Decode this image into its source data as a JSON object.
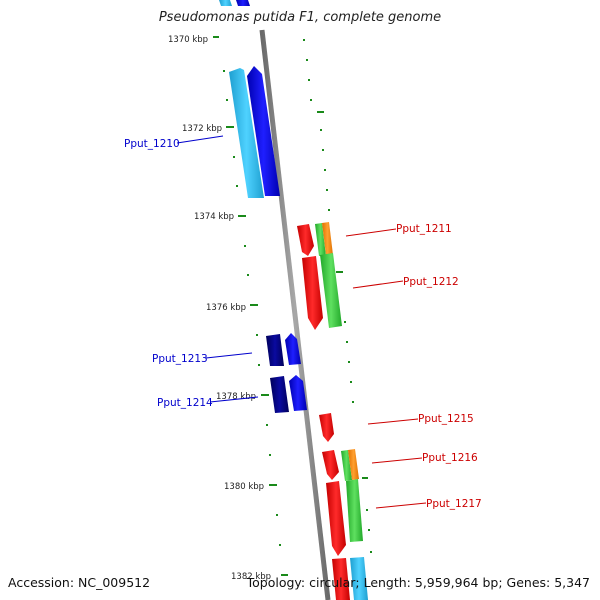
{
  "title": "Pseudomonas putida F1, complete genome",
  "footer": {
    "accession": "Accession: NC_009512",
    "summary": "Topology: circular; Length: 5,959,964 bp; Genes: 5,347"
  },
  "colors": {
    "backbone": "#808080",
    "tick": "#1a8a1a",
    "forward_label": "#0000cc",
    "reverse_label": "#cc0000"
  },
  "kbp_labels": [
    "1370 kbp",
    "1372 kbp",
    "1374 kbp",
    "1376 kbp",
    "1378 kbp",
    "1380 kbp",
    "1382 kbp"
  ],
  "genes": [
    {
      "label": "Pput_1210",
      "strand": "forward",
      "track_color": "#2cb5e8",
      "cds_color": "#0000e0"
    },
    {
      "label": "Pput_1211",
      "strand": "reverse",
      "track_color": "#e41a1c",
      "cds_color": "#2ecc40",
      "accent": "#ff8c00"
    },
    {
      "label": "Pput_1212",
      "strand": "reverse",
      "track_color": "#e41a1c",
      "cds_color": "#2ecc40"
    },
    {
      "label": "Pput_1213",
      "strand": "forward",
      "track_color": "#000080",
      "cds_color": "#0000e0"
    },
    {
      "label": "Pput_1214",
      "strand": "forward",
      "track_color": "#000080",
      "cds_color": "#0000e0"
    },
    {
      "label": "Pput_1215",
      "strand": "reverse",
      "track_color": "#e41a1c",
      "cds_color": "#e41a1c"
    },
    {
      "label": "Pput_1216",
      "strand": "reverse",
      "track_color": "#e41a1c",
      "cds_color": "#2ecc40",
      "accent": "#ff8c00"
    },
    {
      "label": "Pput_1217",
      "strand": "reverse",
      "track_color": "#e41a1c",
      "cds_color": "#2ecc40"
    }
  ]
}
